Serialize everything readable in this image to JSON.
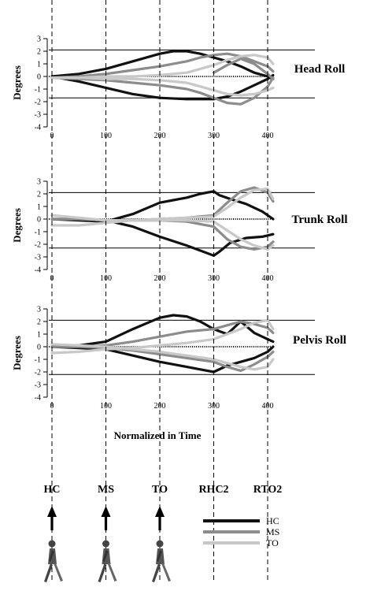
{
  "chart_data": {
    "type": "line",
    "x_ticks": [
      0,
      100,
      200,
      300,
      400
    ],
    "y_ticks": [
      3,
      2,
      1,
      0,
      -1,
      -2,
      -3,
      -4
    ],
    "xlim": [
      0,
      410
    ],
    "ylim": [
      -4,
      3
    ],
    "ylabel": "Degrees",
    "xlabel": "Normalized in Time",
    "events": [
      {
        "label": "HC",
        "x": 0,
        "arrow": true,
        "walker": true
      },
      {
        "label": "MS",
        "x": 100,
        "arrow": true,
        "walker": true
      },
      {
        "label": "TO",
        "x": 200,
        "arrow": true,
        "walker": true
      },
      {
        "label": "RHC2",
        "x": 300,
        "arrow": false,
        "walker": false
      },
      {
        "label": "RTO2",
        "x": 400,
        "arrow": false,
        "walker": false
      }
    ],
    "legend": [
      {
        "name": "HC",
        "color": "#111111"
      },
      {
        "name": "MS",
        "color": "#8c8c8c"
      },
      {
        "name": "TO",
        "color": "#c8c8c8"
      }
    ],
    "panels": [
      {
        "title": "Head Roll",
        "ref_lines": [
          2.1,
          -1.7
        ],
        "series": [
          {
            "name": "HC",
            "color": "#111111",
            "x": [
              0,
              50,
              100,
              150,
              200,
              225,
              250,
              275,
              300,
              325,
              350,
              375,
              400,
              410
            ],
            "y": [
              0,
              0.2,
              0.6,
              1.2,
              1.8,
              2.0,
              2.0,
              1.8,
              1.5,
              1.2,
              0.8,
              0.3,
              0.0,
              -0.2
            ]
          },
          {
            "name": "HC",
            "color": "#111111",
            "x": [
              0,
              50,
              100,
              150,
              200,
              250,
              300,
              325,
              350,
              375,
              400,
              410
            ],
            "y": [
              0,
              -0.4,
              -0.9,
              -1.4,
              -1.7,
              -1.8,
              -1.8,
              -1.6,
              -1.2,
              -0.7,
              -0.2,
              0.1
            ]
          },
          {
            "name": "MS",
            "color": "#8c8c8c",
            "x": [
              0,
              50,
              100,
              150,
              200,
              250,
              275,
              300,
              325,
              350,
              375,
              400,
              410
            ],
            "y": [
              -0.1,
              0,
              0.2,
              0.5,
              0.8,
              1.2,
              1.5,
              1.7,
              1.8,
              1.6,
              1.2,
              0.8,
              0.4
            ]
          },
          {
            "name": "MS",
            "color": "#8c8c8c",
            "x": [
              0,
              50,
              100,
              150,
              200,
              250,
              275,
              300,
              325,
              350,
              375,
              400,
              410
            ],
            "y": [
              -0.1,
              -0.2,
              -0.3,
              -0.5,
              -0.7,
              -1.0,
              -1.3,
              -1.7,
              -2.1,
              -2.2,
              -1.7,
              -0.8,
              -0.1
            ]
          },
          {
            "name": "MS",
            "color": "#8c8c8c",
            "x": [
              300,
              325,
              350,
              375,
              400,
              410
            ],
            "y": [
              0.3,
              0.9,
              1.4,
              1.0,
              0.2,
              -0.2
            ]
          },
          {
            "name": "TO",
            "color": "#c8c8c8",
            "x": [
              0,
              50,
              100,
              150,
              200,
              250,
              275,
              300,
              325,
              350,
              375,
              400,
              410
            ],
            "y": [
              -0.1,
              -0.1,
              0,
              0,
              0.1,
              0.3,
              0.6,
              0.9,
              1.3,
              1.6,
              1.7,
              1.5,
              1.0
            ]
          },
          {
            "name": "TO",
            "color": "#c8c8c8",
            "x": [
              0,
              50,
              100,
              150,
              200,
              250,
              275,
              300,
              325,
              350,
              375,
              400,
              410
            ],
            "y": [
              -0.1,
              -0.1,
              -0.2,
              -0.2,
              -0.3,
              -0.5,
              -0.8,
              -1.1,
              -1.4,
              -1.5,
              -1.4,
              -1.1,
              -0.9
            ]
          }
        ]
      },
      {
        "title": "Trunk Roll",
        "ref_lines": [
          2.1,
          -2.3
        ],
        "series": [
          {
            "name": "HC",
            "color": "#111111",
            "x": [
              0,
              50,
              100,
              150,
              200,
              225,
              250,
              275,
              300,
              310,
              330,
              360,
              390,
              410
            ],
            "y": [
              0,
              -0.1,
              -0.2,
              0.4,
              1.3,
              1.5,
              1.7,
              2.0,
              2.2,
              1.9,
              1.6,
              1.2,
              0.6,
              0.0
            ]
          },
          {
            "name": "HC",
            "color": "#111111",
            "x": [
              0,
              50,
              100,
              150,
              200,
              250,
              275,
              300,
              310,
              330,
              360,
              390,
              410
            ],
            "y": [
              0,
              0,
              -0.1,
              -0.6,
              -1.4,
              -2.1,
              -2.5,
              -2.9,
              -2.6,
              -1.9,
              -1.5,
              -1.4,
              -1.2
            ]
          },
          {
            "name": "MS",
            "color": "#8c8c8c",
            "x": [
              0,
              50,
              100,
              150,
              200,
              250,
              300,
              325,
              350,
              375,
              400,
              410
            ],
            "y": [
              0,
              0,
              -0.1,
              -0.1,
              0,
              0.1,
              0.3,
              1.3,
              2.2,
              2.5,
              2.1,
              1.4
            ]
          },
          {
            "name": "MS",
            "color": "#8c8c8c",
            "x": [
              0,
              50,
              100,
              150,
              200,
              250,
              300,
              325,
              350,
              375,
              400,
              410
            ],
            "y": [
              0,
              0,
              -0.1,
              -0.1,
              -0.1,
              -0.2,
              -0.6,
              -1.6,
              -2.2,
              -2.4,
              -2.2,
              -1.8
            ]
          },
          {
            "name": "TO",
            "color": "#c8c8c8",
            "x": [
              0,
              50,
              100,
              150,
              200,
              250,
              300,
              325,
              350,
              375,
              400,
              410
            ],
            "y": [
              -0.5,
              -0.5,
              -0.3,
              -0.1,
              0,
              0.1,
              0.2,
              0.9,
              1.7,
              2.3,
              2.4,
              1.6
            ]
          },
          {
            "name": "TO",
            "color": "#c8c8c8",
            "x": [
              0,
              50,
              100,
              150,
              200,
              250,
              300,
              325,
              350,
              375,
              400,
              410
            ],
            "y": [
              0.3,
              0.1,
              -0.1,
              -0.1,
              -0.1,
              -0.1,
              -0.2,
              -0.9,
              -1.6,
              -2.1,
              -2.4,
              -2.1
            ]
          }
        ]
      },
      {
        "title": "Pelvis Roll",
        "ref_lines": [
          2.1,
          -2.2
        ],
        "series": [
          {
            "name": "HC",
            "color": "#111111",
            "x": [
              0,
              50,
              100,
              150,
              200,
              225,
              250,
              275,
              300,
              325,
              350,
              375,
              400,
              410
            ],
            "y": [
              0,
              0.1,
              0.4,
              1.4,
              2.3,
              2.5,
              2.4,
              2.0,
              1.4,
              1.0,
              2.0,
              1.1,
              0.6,
              0.4
            ]
          },
          {
            "name": "HC",
            "color": "#111111",
            "x": [
              0,
              50,
              100,
              150,
              200,
              250,
              275,
              300,
              325,
              350,
              375,
              400,
              410
            ],
            "y": [
              0,
              -0.1,
              -0.2,
              -0.7,
              -1.2,
              -1.6,
              -1.8,
              -2.0,
              -1.5,
              -1.2,
              -0.9,
              -0.4,
              0.0
            ]
          },
          {
            "name": "MS",
            "color": "#8c8c8c",
            "x": [
              0,
              50,
              100,
              150,
              200,
              250,
              300,
              325,
              350,
              375,
              400,
              410
            ],
            "y": [
              0,
              0,
              0.1,
              0.4,
              0.8,
              1.2,
              1.4,
              1.7,
              2.0,
              1.8,
              1.5,
              1.1
            ]
          },
          {
            "name": "MS",
            "color": "#8c8c8c",
            "x": [
              0,
              50,
              100,
              150,
              200,
              250,
              300,
              325,
              350,
              375,
              400,
              410
            ],
            "y": [
              0,
              0,
              -0.1,
              -0.3,
              -0.6,
              -0.9,
              -1.2,
              -1.6,
              -1.9,
              -1.4,
              -0.8,
              -0.4
            ]
          },
          {
            "name": "TO",
            "color": "#c8c8c8",
            "x": [
              0,
              50,
              100,
              150,
              200,
              250,
              300,
              325,
              350,
              375,
              400,
              410
            ],
            "y": [
              -0.5,
              -0.4,
              -0.2,
              -0.1,
              0.1,
              0.3,
              0.6,
              1.0,
              1.4,
              1.9,
              2.1,
              1.4
            ]
          },
          {
            "name": "TO",
            "color": "#c8c8c8",
            "x": [
              0,
              50,
              100,
              150,
              200,
              250,
              300,
              325,
              350,
              375,
              400,
              410
            ],
            "y": [
              0.2,
              0.1,
              0,
              -0.2,
              -0.4,
              -0.7,
              -1.0,
              -1.3,
              -1.6,
              -1.8,
              -1.6,
              -1.0
            ]
          }
        ]
      }
    ]
  }
}
